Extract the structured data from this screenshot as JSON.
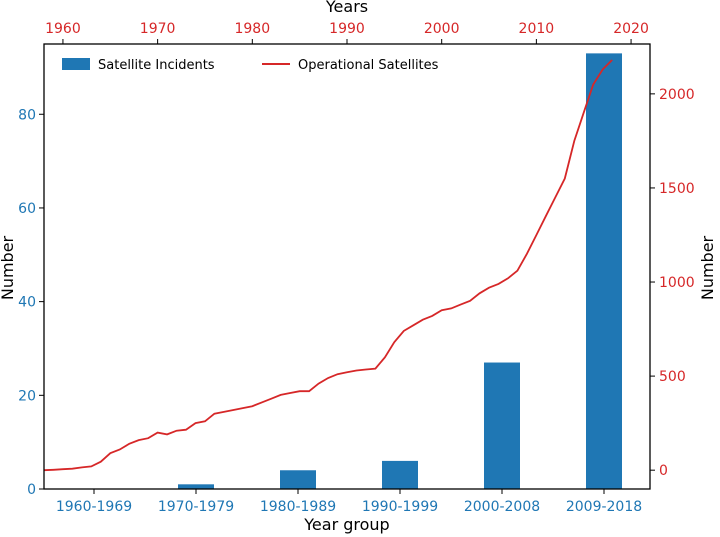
{
  "chart_data": {
    "type": "bar",
    "xlabel": "Year group",
    "ylabel_left": "Number",
    "ylabel_right": "Number",
    "top_xlabel": "Years",
    "categories": [
      "1960-1969",
      "1970-1979",
      "1980-1989",
      "1990-1999",
      "2000-2008",
      "2009-2018"
    ],
    "left_axis": {
      "ylim": [
        0,
        95
      ],
      "ticks": [
        0,
        20,
        40,
        60,
        80
      ]
    },
    "right_axis": {
      "ylim": [
        -100,
        2265
      ],
      "ticks": [
        0,
        500,
        1000,
        1500,
        2000
      ]
    },
    "top_axis": {
      "xlim": [
        1958,
        2022
      ],
      "ticks": [
        1960,
        1970,
        1980,
        1990,
        2000,
        2010,
        2020
      ]
    },
    "grid": false,
    "series": [
      {
        "name": "Satellite Incidents",
        "kind": "bar",
        "axis": "left",
        "color": "#1f77b4",
        "values": [
          0,
          1,
          4,
          6,
          27,
          93
        ]
      },
      {
        "name": "Operational Satellites",
        "kind": "line",
        "axis": "right",
        "color": "#d62728",
        "x": [
          1958,
          1959,
          1960,
          1961,
          1962,
          1963,
          1964,
          1965,
          1966,
          1967,
          1968,
          1969,
          1970,
          1971,
          1972,
          1973,
          1974,
          1975,
          1976,
          1977,
          1978,
          1979,
          1980,
          1981,
          1982,
          1983,
          1984,
          1985,
          1986,
          1987,
          1988,
          1989,
          1990,
          1991,
          1992,
          1993,
          1994,
          1995,
          1996,
          1997,
          1998,
          1999,
          2000,
          2001,
          2002,
          2003,
          2004,
          2005,
          2006,
          2007,
          2008,
          2009,
          2010,
          2011,
          2012,
          2013,
          2014,
          2015,
          2016,
          2017,
          2018
        ],
        "values": [
          0,
          2,
          5,
          8,
          15,
          20,
          45,
          90,
          110,
          140,
          160,
          170,
          200,
          190,
          210,
          215,
          250,
          260,
          300,
          310,
          320,
          330,
          340,
          360,
          380,
          400,
          410,
          420,
          420,
          460,
          490,
          510,
          520,
          530,
          535,
          540,
          600,
          680,
          740,
          770,
          800,
          820,
          850,
          860,
          880,
          900,
          940,
          970,
          990,
          1020,
          1060,
          1150,
          1250,
          1350,
          1450,
          1550,
          1750,
          1900,
          2050,
          2130,
          2180
        ]
      }
    ],
    "legend": {
      "placement": "top"
    }
  }
}
